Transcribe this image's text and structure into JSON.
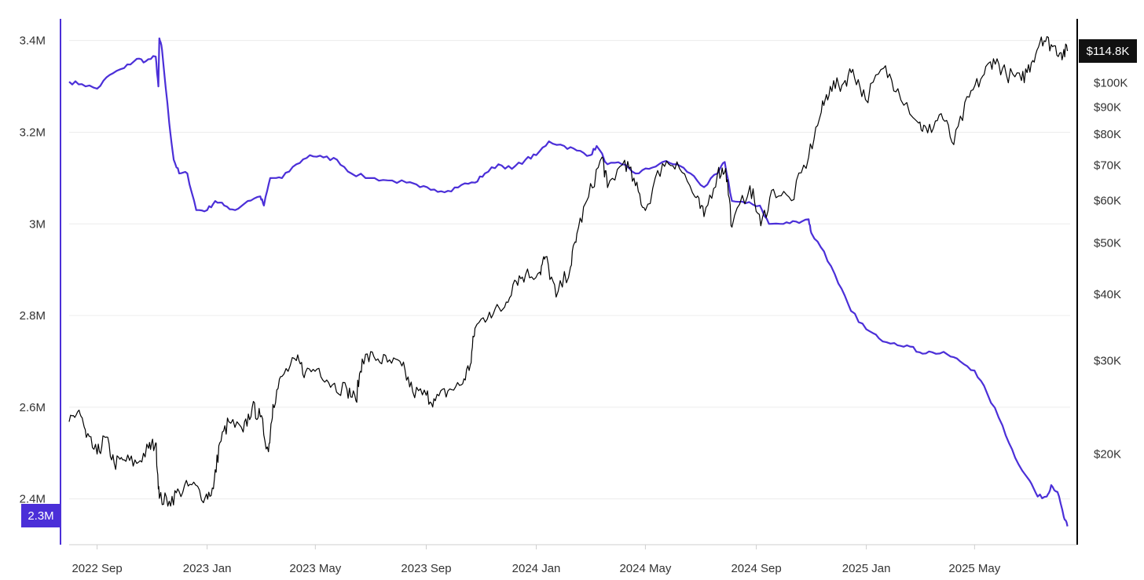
{
  "chart_data": {
    "type": "line",
    "title": "",
    "xlabel": "",
    "x_ticks": [
      "2022 Sep",
      "2023 Jan",
      "2023 May",
      "2023 Sep",
      "2024 Jan",
      "2024 May",
      "2024 Sep",
      "2025 Jan",
      "2025 May"
    ],
    "x_range": [
      "2022-08-01",
      "2025-08-15"
    ],
    "grid": true,
    "legend": "none",
    "left_axis": {
      "scale": "linear",
      "range": [
        2300000,
        3420000
      ],
      "tick_values": [
        2400000,
        2600000,
        2800000,
        3000000,
        3200000,
        3400000
      ],
      "tick_labels": [
        "2.4M",
        "2.6M",
        "2.8M",
        "3M",
        "3.2M",
        "3.4M"
      ],
      "color": "#4b2fd8",
      "current_badge": "2.3M"
    },
    "right_axis": {
      "scale": "log",
      "range": [
        13500,
        125000
      ],
      "tick_values": [
        20000,
        30000,
        40000,
        50000,
        60000,
        70000,
        80000,
        90000,
        100000
      ],
      "tick_labels": [
        "$20K",
        "$30K",
        "$40K",
        "$50K",
        "$60K",
        "$70K",
        "$80K",
        "$90K",
        "$100K"
      ],
      "color": "#000000",
      "current_badge": "$114.8K"
    },
    "series": [
      {
        "axis": "left",
        "color": "#4b2fd8",
        "points": [
          [
            "2022-08-01",
            3310000
          ],
          [
            "2022-08-15",
            3305000
          ],
          [
            "2022-09-01",
            3295000
          ],
          [
            "2022-09-15",
            3325000
          ],
          [
            "2022-10-01",
            3340000
          ],
          [
            "2022-10-15",
            3360000
          ],
          [
            "2022-10-25",
            3355000
          ],
          [
            "2022-11-05",
            3365000
          ],
          [
            "2022-11-08",
            3300000
          ],
          [
            "2022-11-09",
            3405000
          ],
          [
            "2022-11-12",
            3380000
          ],
          [
            "2022-11-20",
            3220000
          ],
          [
            "2022-11-25",
            3140000
          ],
          [
            "2022-12-01",
            3110000
          ],
          [
            "2022-12-10",
            3110000
          ],
          [
            "2022-12-20",
            3030000
          ],
          [
            "2023-01-01",
            3030000
          ],
          [
            "2023-01-10",
            3050000
          ],
          [
            "2023-01-20",
            3040000
          ],
          [
            "2023-02-01",
            3030000
          ],
          [
            "2023-02-15",
            3050000
          ],
          [
            "2023-03-01",
            3060000
          ],
          [
            "2023-03-05",
            3040000
          ],
          [
            "2023-03-12",
            3100000
          ],
          [
            "2023-03-25",
            3100000
          ],
          [
            "2023-04-10",
            3130000
          ],
          [
            "2023-04-25",
            3150000
          ],
          [
            "2023-05-10",
            3145000
          ],
          [
            "2023-05-25",
            3140000
          ],
          [
            "2023-06-10",
            3110000
          ],
          [
            "2023-07-01",
            3100000
          ],
          [
            "2023-07-20",
            3095000
          ],
          [
            "2023-08-10",
            3090000
          ],
          [
            "2023-08-25",
            3080000
          ],
          [
            "2023-09-10",
            3075000
          ],
          [
            "2023-09-25",
            3072000
          ],
          [
            "2023-10-10",
            3085000
          ],
          [
            "2023-10-25",
            3090000
          ],
          [
            "2023-11-05",
            3110000
          ],
          [
            "2023-11-20",
            3130000
          ],
          [
            "2023-12-05",
            3120000
          ],
          [
            "2023-12-20",
            3140000
          ],
          [
            "2024-01-01",
            3150000
          ],
          [
            "2024-01-15",
            3180000
          ],
          [
            "2024-02-01",
            3170000
          ],
          [
            "2024-02-15",
            3160000
          ],
          [
            "2024-03-01",
            3150000
          ],
          [
            "2024-03-08",
            3170000
          ],
          [
            "2024-03-20",
            3130000
          ],
          [
            "2024-04-05",
            3130000
          ],
          [
            "2024-04-20",
            3110000
          ],
          [
            "2024-05-05",
            3120000
          ],
          [
            "2024-05-20",
            3135000
          ],
          [
            "2024-06-05",
            3130000
          ],
          [
            "2024-06-20",
            3110000
          ],
          [
            "2024-07-05",
            3080000
          ],
          [
            "2024-07-20",
            3110000
          ],
          [
            "2024-07-28",
            3135000
          ],
          [
            "2024-08-05",
            3050000
          ],
          [
            "2024-08-20",
            3045000
          ],
          [
            "2024-09-05",
            3040000
          ],
          [
            "2024-09-15",
            3000000
          ],
          [
            "2024-10-01",
            3000000
          ],
          [
            "2024-10-15",
            3005000
          ],
          [
            "2024-10-29",
            3010000
          ],
          [
            "2024-11-01",
            2980000
          ],
          [
            "2024-11-15",
            2940000
          ],
          [
            "2024-12-01",
            2870000
          ],
          [
            "2024-12-15",
            2810000
          ],
          [
            "2025-01-01",
            2770000
          ],
          [
            "2025-01-15",
            2750000
          ],
          [
            "2025-02-01",
            2740000
          ],
          [
            "2025-02-15",
            2735000
          ],
          [
            "2025-03-01",
            2720000
          ],
          [
            "2025-03-15",
            2720000
          ],
          [
            "2025-04-01",
            2715000
          ],
          [
            "2025-04-15",
            2700000
          ],
          [
            "2025-05-01",
            2680000
          ],
          [
            "2025-05-15",
            2630000
          ],
          [
            "2025-06-01",
            2560000
          ],
          [
            "2025-06-15",
            2490000
          ],
          [
            "2025-07-01",
            2440000
          ],
          [
            "2025-07-10",
            2405000
          ],
          [
            "2025-07-20",
            2405000
          ],
          [
            "2025-07-25",
            2430000
          ],
          [
            "2025-08-01",
            2415000
          ],
          [
            "2025-08-08",
            2360000
          ],
          [
            "2025-08-12",
            2340000
          ]
        ]
      },
      {
        "axis": "right",
        "color": "#000000",
        "points": [
          [
            "2022-08-01",
            23000
          ],
          [
            "2022-08-12",
            24200
          ],
          [
            "2022-08-20",
            21500
          ],
          [
            "2022-09-01",
            20000
          ],
          [
            "2022-09-10",
            21500
          ],
          [
            "2022-09-20",
            19200
          ],
          [
            "2022-10-01",
            19500
          ],
          [
            "2022-10-15",
            19200
          ],
          [
            "2022-10-28",
            20500
          ],
          [
            "2022-11-05",
            21000
          ],
          [
            "2022-11-09",
            16500
          ],
          [
            "2022-11-20",
            16300
          ],
          [
            "2022-12-01",
            17000
          ],
          [
            "2022-12-15",
            17500
          ],
          [
            "2022-12-30",
            16600
          ],
          [
            "2023-01-08",
            17200
          ],
          [
            "2023-01-15",
            21000
          ],
          [
            "2023-01-25",
            23000
          ],
          [
            "2023-02-10",
            22000
          ],
          [
            "2023-02-20",
            24500
          ],
          [
            "2023-03-01",
            23500
          ],
          [
            "2023-03-10",
            20200
          ],
          [
            "2023-03-15",
            24800
          ],
          [
            "2023-03-25",
            28000
          ],
          [
            "2023-04-10",
            30000
          ],
          [
            "2023-04-20",
            28500
          ],
          [
            "2023-05-05",
            29000
          ],
          [
            "2023-05-20",
            27000
          ],
          [
            "2023-06-05",
            26500
          ],
          [
            "2023-06-15",
            25200
          ],
          [
            "2023-06-22",
            30200
          ],
          [
            "2023-07-05",
            30500
          ],
          [
            "2023-07-20",
            29800
          ],
          [
            "2023-08-05",
            29300
          ],
          [
            "2023-08-17",
            26200
          ],
          [
            "2023-09-01",
            25800
          ],
          [
            "2023-09-11",
            25200
          ],
          [
            "2023-09-25",
            26300
          ],
          [
            "2023-10-10",
            27000
          ],
          [
            "2023-10-20",
            29500
          ],
          [
            "2023-10-25",
            34500
          ],
          [
            "2023-11-10",
            37000
          ],
          [
            "2023-11-25",
            37500
          ],
          [
            "2023-12-08",
            42500
          ],
          [
            "2023-12-20",
            43500
          ],
          [
            "2024-01-05",
            44000
          ],
          [
            "2024-01-11",
            47000
          ],
          [
            "2024-01-23",
            39500
          ],
          [
            "2024-02-08",
            45000
          ],
          [
            "2024-02-15",
            52000
          ],
          [
            "2024-02-28",
            61000
          ],
          [
            "2024-03-14",
            72500
          ],
          [
            "2024-03-20",
            63500
          ],
          [
            "2024-04-08",
            71500
          ],
          [
            "2024-04-20",
            64000
          ],
          [
            "2024-05-01",
            57500
          ],
          [
            "2024-05-20",
            70500
          ],
          [
            "2024-06-05",
            71000
          ],
          [
            "2024-06-25",
            61000
          ],
          [
            "2024-07-05",
            56000
          ],
          [
            "2024-07-20",
            67500
          ],
          [
            "2024-07-29",
            69000
          ],
          [
            "2024-08-05",
            53500
          ],
          [
            "2024-08-25",
            64000
          ],
          [
            "2024-09-06",
            53800
          ],
          [
            "2024-09-20",
            63000
          ],
          [
            "2024-10-10",
            60000
          ],
          [
            "2024-10-29",
            72500
          ],
          [
            "2024-11-12",
            88000
          ],
          [
            "2024-11-22",
            98500
          ],
          [
            "2024-12-05",
            99000
          ],
          [
            "2024-12-17",
            106000
          ],
          [
            "2024-12-31",
            93000
          ],
          [
            "2025-01-20",
            106500
          ],
          [
            "2025-02-05",
            97500
          ],
          [
            "2025-02-28",
            84000
          ],
          [
            "2025-03-10",
            80500
          ],
          [
            "2025-03-25",
            87500
          ],
          [
            "2025-04-08",
            76500
          ],
          [
            "2025-04-25",
            94000
          ],
          [
            "2025-05-10",
            103000
          ],
          [
            "2025-05-22",
            111000
          ],
          [
            "2025-06-05",
            104000
          ],
          [
            "2025-06-22",
            101000
          ],
          [
            "2025-07-03",
            109000
          ],
          [
            "2025-07-14",
            122000
          ],
          [
            "2025-07-25",
            118000
          ],
          [
            "2025-08-05",
            114000
          ],
          [
            "2025-08-12",
            114800
          ]
        ]
      }
    ]
  }
}
